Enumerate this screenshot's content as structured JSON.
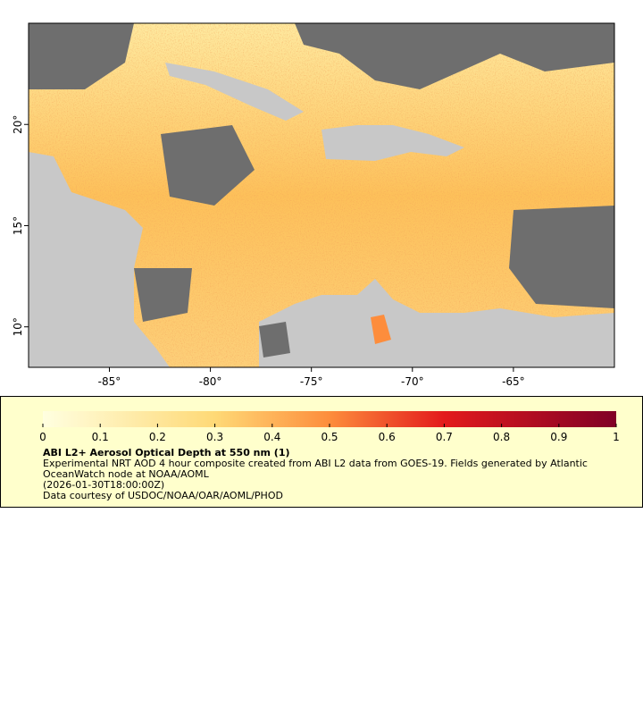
{
  "map": {
    "xlim": [
      -89,
      -60
    ],
    "ylim": [
      8,
      25
    ],
    "xticks": [
      {
        "value": -85,
        "label": "-85°"
      },
      {
        "value": -80,
        "label": "-80°"
      },
      {
        "value": -75,
        "label": "-75°"
      },
      {
        "value": -70,
        "label": "-70°"
      },
      {
        "value": -65,
        "label": "-65°"
      }
    ],
    "yticks": [
      {
        "value": 10,
        "label": "10°"
      },
      {
        "value": 15,
        "label": "15°"
      },
      {
        "value": 20,
        "label": "20°"
      }
    ]
  },
  "legend": {
    "colorbar_ticks": [
      0,
      0.1,
      0.2,
      0.3,
      0.4,
      0.5,
      0.6,
      0.7,
      0.8,
      0.9,
      1
    ],
    "title": "ABI L2+ Aerosol Optical Depth at 550 nm (1)",
    "lines": [
      "Experimental NRT AOD 4 hour composite created from ABI L2 data from GOES-19. Fields generated by Atlantic OceanWatch node at NOAA/AOML",
      "(2026-01-30T18:00:00Z)",
      "Data courtesy of USDOC/NOAA/OAR/AOML/PHOD"
    ]
  }
}
